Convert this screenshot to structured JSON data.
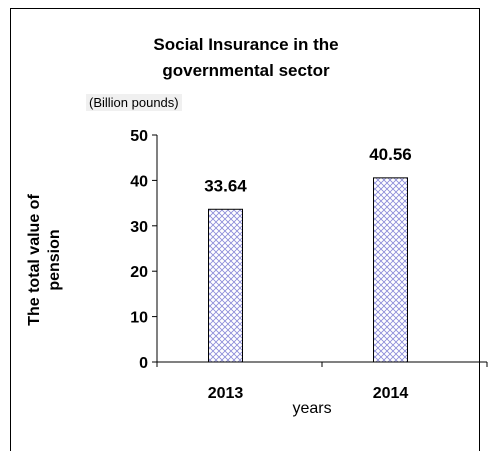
{
  "chart_data": {
    "type": "bar",
    "title_lines": [
      "Social Insurance in the",
      "governmental  sector"
    ],
    "unit_note": "(Billion pounds)",
    "ylabel_lines": [
      "The total value of",
      "pension"
    ],
    "xlabel": "years",
    "categories": [
      "2013",
      "2014"
    ],
    "values": [
      33.64,
      40.56
    ],
    "data_labels": [
      "33.64",
      "40.56"
    ],
    "ylim": [
      0,
      50
    ],
    "yticks": [
      0,
      10,
      20,
      30,
      40,
      50
    ],
    "ytick_labels": [
      "0",
      "10",
      "20",
      "30",
      "40",
      "50"
    ],
    "grid": false,
    "bar_fill": "#c9c9ee",
    "bar_pattern": "crosshatch"
  }
}
